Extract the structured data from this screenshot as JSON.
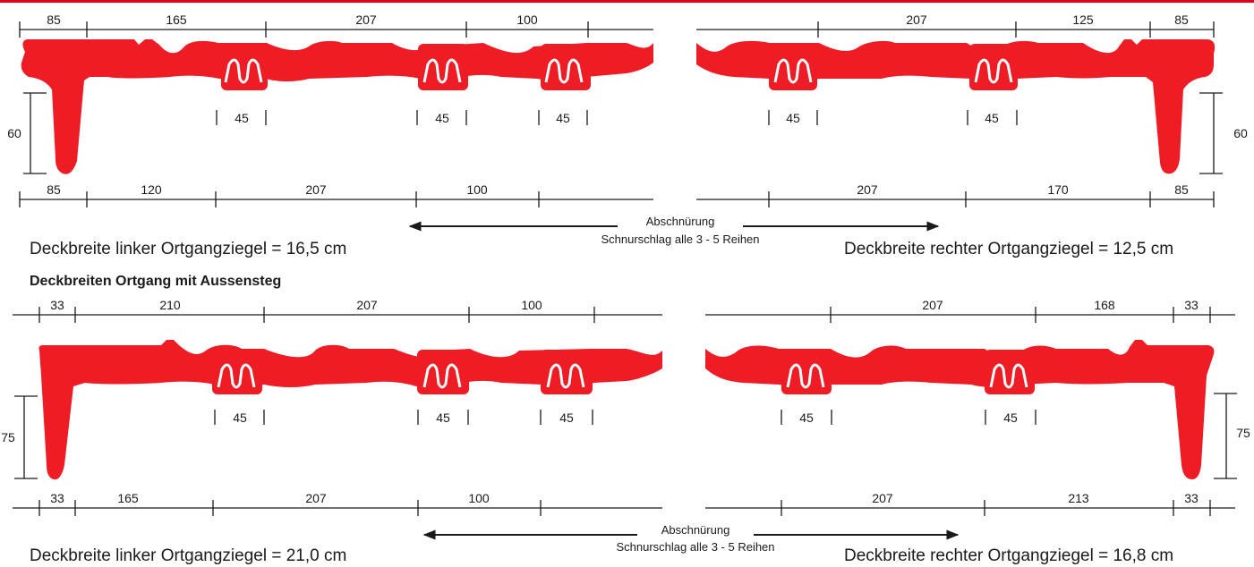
{
  "colors": {
    "tile": "#ee1c25",
    "line": "#1a1a1a",
    "topbar": "#e2001a"
  },
  "section2": {
    "heading": "Deckbreiten Ortgang mit Aussensteg"
  },
  "top": {
    "left": {
      "top_dims": [
        "85",
        "165",
        "207",
        "100"
      ],
      "bottom_dims": [
        "85",
        "120",
        "207",
        "100"
      ],
      "gaps": [
        "45",
        "45",
        "45"
      ],
      "height": "60",
      "caption": "Deckbreite linker Ortgangziegel = 16,5 cm"
    },
    "right": {
      "top_dims": [
        "207",
        "125",
        "85"
      ],
      "bottom_dims": [
        "207",
        "170",
        "85"
      ],
      "gaps": [
        "45",
        "45"
      ],
      "height": "60",
      "caption": "Deckbreite rechter Ortgangziegel = 12,5 cm"
    },
    "center": {
      "line1": "Abschnürung",
      "line2": "Schnurschlag alle 3 - 5 Reihen"
    }
  },
  "bottom": {
    "left": {
      "top_dims": [
        "33",
        "210",
        "207",
        "100"
      ],
      "bottom_dims": [
        "33",
        "165",
        "207",
        "100"
      ],
      "gaps": [
        "45",
        "45",
        "45"
      ],
      "height": "75",
      "caption": "Deckbreite linker Ortgangziegel = 21,0 cm"
    },
    "right": {
      "top_dims": [
        "207",
        "168",
        "33"
      ],
      "bottom_dims": [
        "207",
        "213",
        "33"
      ],
      "gaps": [
        "45",
        "45"
      ],
      "height": "75",
      "caption": "Deckbreite rechter Ortgangziegel = 16,8 cm"
    },
    "center": {
      "line1": "Abschnürung",
      "line2": "Schnurschlag alle 3 - 5 Reihen"
    }
  }
}
